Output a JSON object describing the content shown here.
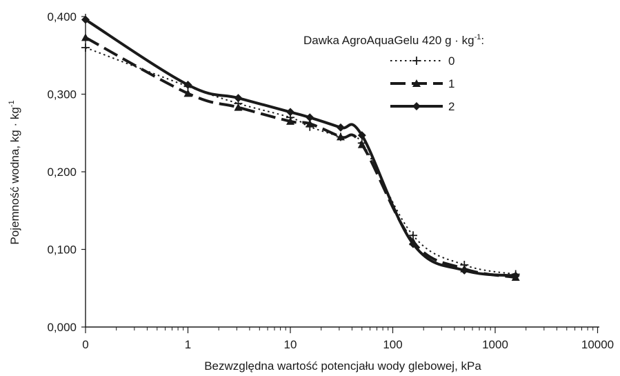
{
  "chart_data": {
    "type": "line",
    "xlabel": "Bezwzględna wartość potencjału wody glebowej, kPa",
    "ylabel": {
      "main": "Pojemność wodna, kg · kg",
      "sup": "-1"
    },
    "x_scale": "log",
    "x_ticks": [
      {
        "value": 0,
        "label": "0"
      },
      {
        "value": 1,
        "label": "1"
      },
      {
        "value": 10,
        "label": "10"
      },
      {
        "value": 100,
        "label": "100"
      },
      {
        "value": 1000,
        "label": "1000"
      },
      {
        "value": 10000,
        "label": "10000"
      }
    ],
    "y_ticks": [
      {
        "value": 0.0,
        "label": "0,000"
      },
      {
        "value": 0.1,
        "label": "0,100"
      },
      {
        "value": 0.2,
        "label": "0,200"
      },
      {
        "value": 0.3,
        "label": "0,300"
      },
      {
        "value": 0.4,
        "label": "0,400"
      }
    ],
    "ylim": [
      0,
      0.4
    ],
    "grid": false,
    "legend": {
      "title_main": "Dawka AgroAquaGelu 420 g · kg",
      "title_sup": "-1",
      "title_end": ":",
      "placement": "top-right"
    },
    "series": [
      {
        "name": "0",
        "style": "dotted",
        "marker": "plus",
        "color": "#1a1a1a",
        "points": [
          [
            0,
            0.36
          ],
          [
            1,
            0.31
          ],
          [
            3.1,
            0.288
          ],
          [
            10,
            0.27
          ],
          [
            15.5,
            0.258
          ],
          [
            31,
            0.245
          ],
          [
            50,
            0.237
          ],
          [
            158,
            0.118
          ],
          [
            500,
            0.08
          ],
          [
            1585,
            0.068
          ]
        ]
      },
      {
        "name": "1",
        "style": "dashed",
        "marker": "triangle",
        "color": "#1a1a1a",
        "points": [
          [
            0,
            0.373
          ],
          [
            1,
            0.301
          ],
          [
            3.1,
            0.283
          ],
          [
            10,
            0.265
          ],
          [
            15.5,
            0.262
          ],
          [
            31,
            0.245
          ],
          [
            50,
            0.235
          ],
          [
            158,
            0.11
          ],
          [
            500,
            0.075
          ],
          [
            1585,
            0.064
          ]
        ]
      },
      {
        "name": "2",
        "style": "solid",
        "marker": "diamond",
        "color": "#1a1a1a",
        "points": [
          [
            0,
            0.396
          ],
          [
            1,
            0.312
          ],
          [
            3.1,
            0.295
          ],
          [
            10,
            0.277
          ],
          [
            15.5,
            0.27
          ],
          [
            31,
            0.257
          ],
          [
            50,
            0.247
          ],
          [
            158,
            0.107
          ],
          [
            500,
            0.073
          ],
          [
            1585,
            0.066
          ]
        ]
      }
    ]
  }
}
